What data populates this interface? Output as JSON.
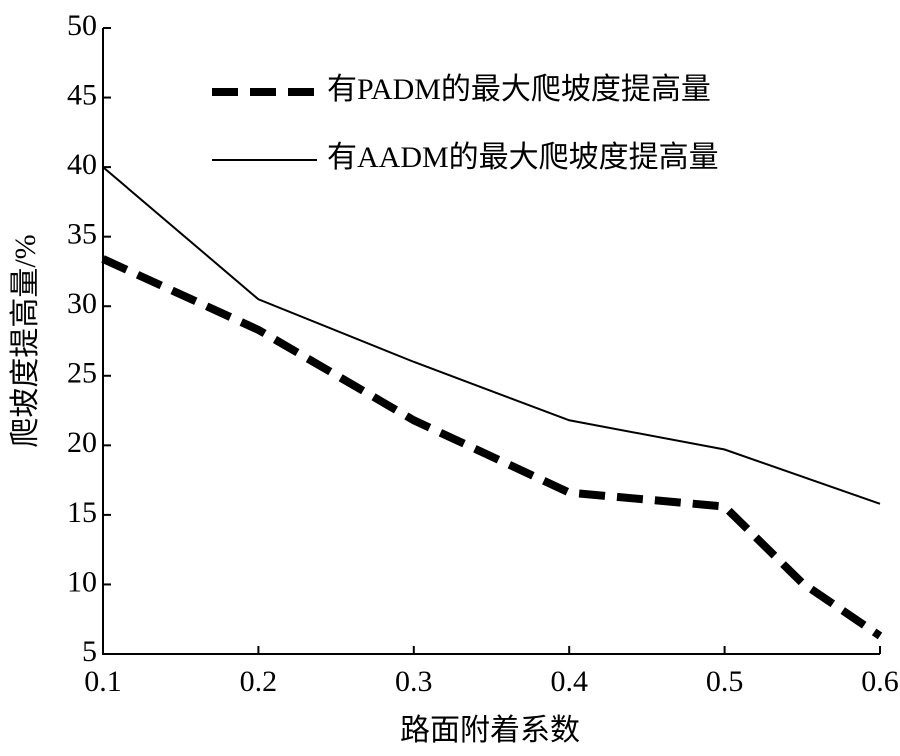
{
  "chart_data": {
    "type": "line",
    "xlabel": "路面附着系数",
    "ylabel": "爬坡度提高量/%",
    "xlim": [
      0.1,
      0.6
    ],
    "xticks": [
      0.1,
      0.2,
      0.3,
      0.4,
      0.5,
      0.6
    ],
    "ylim": [
      5,
      50
    ],
    "yticks": [
      5,
      10,
      15,
      20,
      25,
      30,
      35,
      40,
      45,
      50
    ],
    "legend": "upper right",
    "series": [
      {
        "name": "有PADM的最大爬坡度提高量",
        "color": "#000000",
        "style": "dashed",
        "x": [
          0.1,
          0.2,
          0.3,
          0.4,
          0.5,
          0.55,
          0.6
        ],
        "values": [
          33.4,
          28.3,
          21.8,
          16.6,
          15.6,
          10.1,
          6.3
        ]
      },
      {
        "name": "有AADM的最大爬坡度提高量",
        "color": "#000000",
        "style": "solid",
        "x": [
          0.1,
          0.2,
          0.3,
          0.4,
          0.5,
          0.6
        ],
        "values": [
          40,
          30.5,
          26,
          21.8,
          19.7,
          15.8
        ]
      }
    ]
  }
}
